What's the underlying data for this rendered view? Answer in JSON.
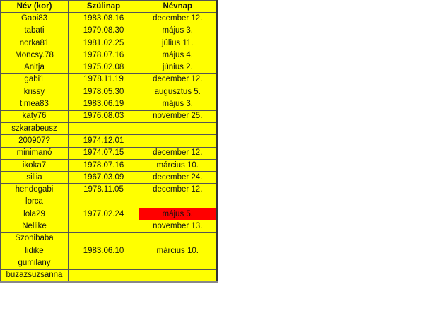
{
  "headers": [
    "Név   (kor)",
    "Szülinap",
    "Névnap"
  ],
  "highlight_color": "#ff0000",
  "cell_color": "#ffff00",
  "rows": [
    {
      "name": "Gabi83",
      "birthday": "1983.08.16",
      "nameday": "december 12."
    },
    {
      "name": "tabati",
      "birthday": "1979.08.30",
      "nameday": "május 3."
    },
    {
      "name": "norka81",
      "birthday": "1981.02.25",
      "nameday": "július 11."
    },
    {
      "name": "Moncsy.78",
      "birthday": "1978.07.16",
      "nameday": "május 4."
    },
    {
      "name": "Anitja",
      "birthday": "1975.02.08",
      "nameday": "június 2."
    },
    {
      "name": "gabi1",
      "birthday": "1978.11.19",
      "nameday": "december 12."
    },
    {
      "name": "krissy",
      "birthday": "1978.05.30",
      "nameday": "augusztus 5."
    },
    {
      "name": "timea83",
      "birthday": "1983.06.19",
      "nameday": "május 3."
    },
    {
      "name": "katy76",
      "birthday": "1976.08.03",
      "nameday": "november 25."
    },
    {
      "name": "szkarabeusz",
      "birthday": "",
      "nameday": ""
    },
    {
      "name": "200907?",
      "birthday": "1974.12.01",
      "nameday": ""
    },
    {
      "name": "minimanó",
      "birthday": "1974.07.15",
      "nameday": "december 12."
    },
    {
      "name": "ikoka7",
      "birthday": "1978.07.16",
      "nameday": "március 10."
    },
    {
      "name": "sillia",
      "birthday": "1967.03.09",
      "nameday": "december 24."
    },
    {
      "name": "hendegabi",
      "birthday": "1978.11.05",
      "nameday": "december 12."
    },
    {
      "name": "lorca",
      "birthday": "",
      "nameday": ""
    },
    {
      "name": "lola29",
      "birthday": "1977.02.24",
      "nameday": "május 5.",
      "highlight": true
    },
    {
      "name": "Nellike",
      "birthday": "",
      "nameday": "november 13."
    },
    {
      "name": "Szonibaba",
      "birthday": "",
      "nameday": ""
    },
    {
      "name": "lidike",
      "birthday": "1983.06.10",
      "nameday": "március 10."
    },
    {
      "name": "gumilany",
      "birthday": "",
      "nameday": ""
    },
    {
      "name": "buzazsuzsanna",
      "birthday": "",
      "nameday": ""
    }
  ]
}
